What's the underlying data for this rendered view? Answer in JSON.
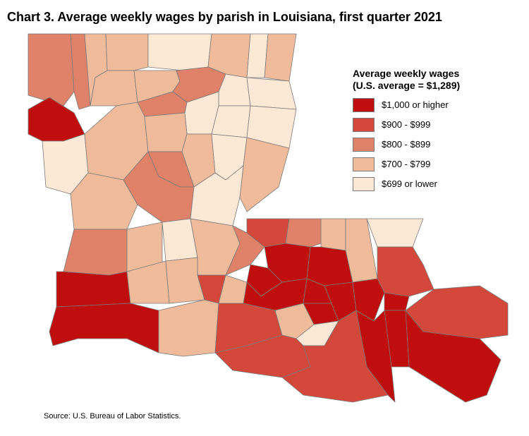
{
  "title": "Chart 3. Average weekly wages by parish in Louisiana, first quarter 2021",
  "legend": {
    "title_line1": "Average weekly wages",
    "title_line2": "(U.S. average = $1,289)",
    "items": [
      {
        "label": "$1,000 or higher",
        "color": "#c00d0d"
      },
      {
        "label": "$900 - $999",
        "color": "#d4473b"
      },
      {
        "label": "$800 - $899",
        "color": "#e0826a"
      },
      {
        "label": "$700 - $799",
        "color": "#f0bb9b"
      },
      {
        "label": "$699 or lower",
        "color": "#fde8d6"
      }
    ]
  },
  "source": "Source: U.S. Bureau of Labor Statistics.",
  "outline_color": "#7a7a7a"
}
